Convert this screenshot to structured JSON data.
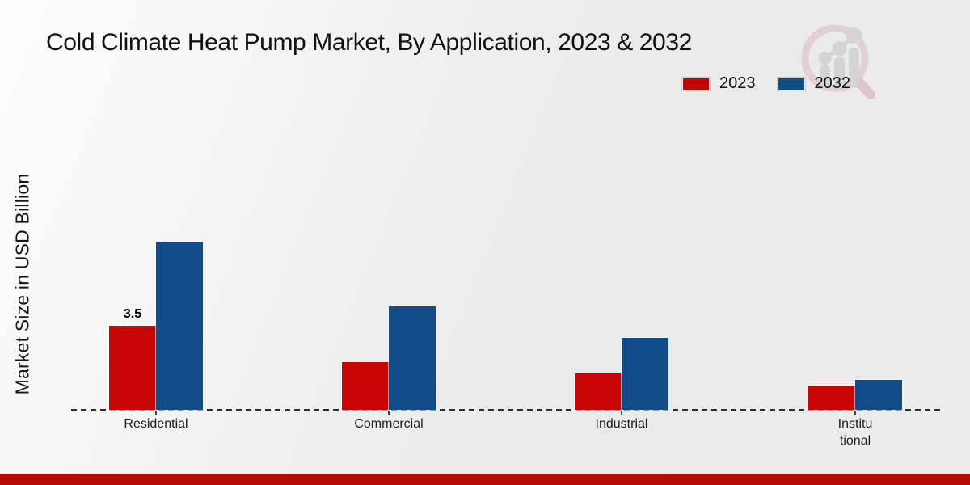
{
  "title": "Cold Climate Heat Pump Market, By Application, 2023 & 2032",
  "y_axis_label": "Market Size in USD Billion",
  "legend": {
    "items": [
      {
        "label": "2023",
        "color": "#c40606"
      },
      {
        "label": "2032",
        "color": "#114c88"
      }
    ]
  },
  "watermark_icon": "magnifier-bar-chart-logo",
  "footer": {
    "bar_color": "#b50c05"
  },
  "chart_data": {
    "type": "bar",
    "title": "Cold Climate Heat Pump Market, By Application, 2023 & 2032",
    "categories": [
      "Residential",
      "Commercial",
      "Industrial",
      "Institu\ntional"
    ],
    "series": [
      {
        "name": "2023",
        "color": "#c90404",
        "values": [
          3.5,
          2.0,
          1.5,
          1.0
        ]
      },
      {
        "name": "2032",
        "color": "#114c88",
        "values": [
          7.0,
          4.3,
          3.0,
          1.25
        ]
      }
    ],
    "data_labels": [
      {
        "series_index": 0,
        "category_index": 0,
        "text": "3.5"
      }
    ],
    "xlabel": "",
    "ylabel": "Market Size in USD Billion",
    "ylim": [
      0,
      8
    ],
    "grid": false,
    "legend_position": "top-right",
    "baseline_style": "dashed"
  }
}
